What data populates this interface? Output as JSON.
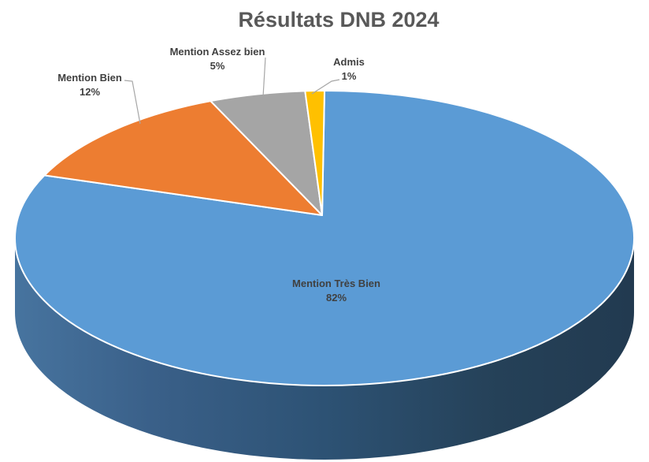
{
  "page": {
    "background": "#FFFFFF"
  },
  "chart_data": {
    "type": "pie",
    "style": "3d",
    "title": "Résultats DNB 2024",
    "legend": "none",
    "direction": "clockwise",
    "start_angle_deg": 0,
    "categories": [
      "Mention Très Bien",
      "Mention Bien",
      "Mention Assez bien",
      "Admis"
    ],
    "values_percent": [
      82,
      12,
      5,
      1
    ],
    "slices": [
      {
        "label": "Mention Très Bien",
        "value_percent": 82,
        "pct_text": "82%",
        "color": "#5B9BD5",
        "label_position": "inside"
      },
      {
        "label": "Mention Bien",
        "value_percent": 12,
        "pct_text": "12%",
        "color": "#ED7D31",
        "label_position": "outside"
      },
      {
        "label": "Mention Assez bien",
        "value_percent": 5,
        "pct_text": "5%",
        "color": "#A5A5A5",
        "label_position": "outside"
      },
      {
        "label": "Admis",
        "value_percent": 1,
        "pct_text": "1%",
        "color": "#FFC000",
        "label_position": "outside"
      }
    ]
  },
  "colors": {
    "title_text": "#595959",
    "label_text": "#404040",
    "leader_line": "#A6A6A6",
    "slice_border": "#FFFFFF",
    "side_gradient_left": "#47749F",
    "side_gradient_mid": "#2D5274",
    "side_gradient_right": "#223A50"
  }
}
